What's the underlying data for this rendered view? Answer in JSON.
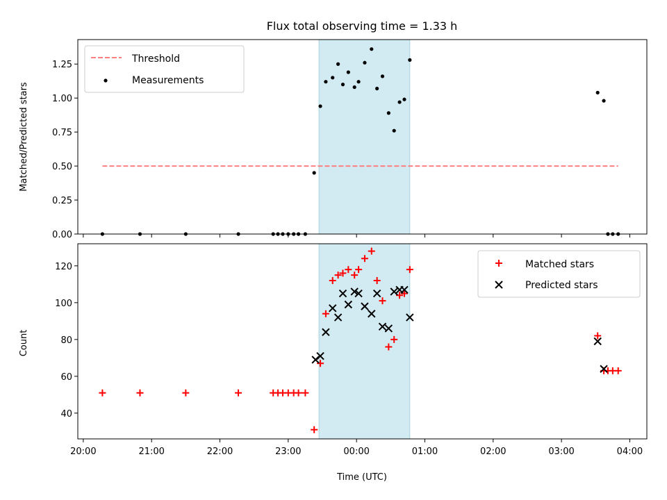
{
  "chart_data": {
    "title": "Flux total observing time = 1.33 h",
    "xlabel": "Time (UTC)",
    "x_tick_labels": [
      "20:00",
      "21:00",
      "22:00",
      "23:00",
      "00:00",
      "01:00",
      "02:00",
      "03:00",
      "04:00"
    ],
    "x_range_hours": [
      19.92,
      28.25
    ],
    "highlight_span_hours": [
      23.45,
      24.78
    ],
    "highlight_color": "#add8e6",
    "panels": [
      {
        "type": "scatter",
        "ylabel": "Matched/Predicted stars",
        "ylim": [
          0,
          1.43
        ],
        "y_ticks": [
          0,
          0.25,
          0.5,
          0.75,
          1.0,
          1.25
        ],
        "y_tick_labels": [
          "0.00",
          "0.25",
          "0.50",
          "0.75",
          "1.00",
          "1.25"
        ],
        "legend_position": "upper-left",
        "threshold": {
          "name": "Threshold",
          "value": 0.5,
          "x_range": [
            20.28,
            27.83
          ],
          "color": "#ff7f7f"
        },
        "series": [
          {
            "name": "Measurements",
            "color": "#000000",
            "x": [
              20.28,
              20.83,
              21.5,
              22.27,
              22.78,
              22.85,
              22.92,
              23.0,
              23.08,
              23.15,
              23.25,
              23.38,
              23.47,
              23.55,
              23.65,
              23.73,
              23.8,
              23.88,
              23.97,
              24.03,
              24.12,
              24.22,
              24.3,
              24.38,
              24.47,
              24.55,
              24.63,
              24.7,
              24.78,
              27.53,
              27.62,
              27.68,
              27.75,
              27.83
            ],
            "y": [
              0,
              0,
              0,
              0,
              0,
              0,
              0,
              0,
              0,
              0,
              0,
              0.45,
              0.94,
              1.12,
              1.15,
              1.25,
              1.1,
              1.19,
              1.08,
              1.12,
              1.26,
              1.36,
              1.07,
              1.16,
              0.89,
              0.76,
              0.97,
              0.99,
              1.28,
              1.04,
              0.98,
              0,
              0,
              0
            ]
          }
        ]
      },
      {
        "type": "scatter",
        "ylabel": "Count",
        "ylim": [
          26,
          132
        ],
        "y_ticks": [
          40,
          60,
          80,
          100,
          120
        ],
        "y_tick_labels": [
          "40",
          "60",
          "80",
          "100",
          "120"
        ],
        "legend_position": "upper-right",
        "series": [
          {
            "name": "Matched stars",
            "marker": "plus",
            "color": "#ff0000",
            "x": [
              20.28,
              20.83,
              21.5,
              22.27,
              22.78,
              22.85,
              22.92,
              23.0,
              23.08,
              23.15,
              23.25,
              23.38,
              23.47,
              23.55,
              23.65,
              23.73,
              23.8,
              23.88,
              23.97,
              24.03,
              24.12,
              24.22,
              24.3,
              24.38,
              24.47,
              24.55,
              24.63,
              24.7,
              24.78,
              27.53,
              27.62,
              27.68,
              27.75,
              27.83
            ],
            "y": [
              51,
              51,
              51,
              51,
              51,
              51,
              51,
              51,
              51,
              51,
              51,
              31,
              67,
              94,
              112,
              115,
              116,
              118,
              115,
              118,
              124,
              128,
              112,
              101,
              76,
              80,
              104,
              105,
              118,
              82,
              63,
              63,
              63,
              63
            ]
          },
          {
            "name": "Predicted stars",
            "marker": "x",
            "color": "#000000",
            "x": [
              23.4,
              23.47,
              23.55,
              23.65,
              23.73,
              23.8,
              23.88,
              23.97,
              24.03,
              24.12,
              24.22,
              24.3,
              24.38,
              24.47,
              24.55,
              24.63,
              24.7,
              24.78,
              27.53,
              27.62
            ],
            "y": [
              69,
              71,
              84,
              97,
              92,
              105,
              99,
              106,
              105,
              98,
              94,
              105,
              87,
              86,
              106,
              107,
              107,
              92,
              79,
              64
            ]
          }
        ]
      }
    ]
  }
}
